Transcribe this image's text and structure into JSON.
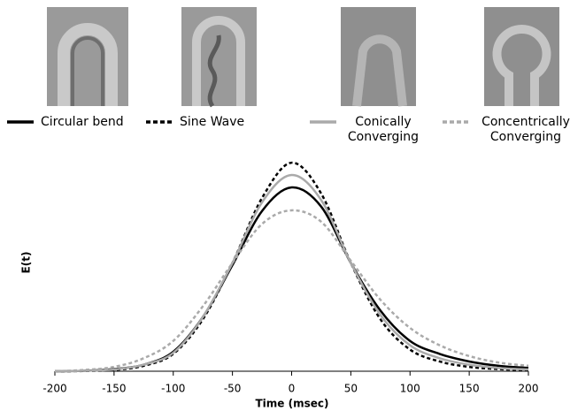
{
  "chart_data": {
    "type": "line",
    "x_label": "Time (msec)",
    "y_label": "E(t)",
    "x": [
      -200,
      -175,
      -150,
      -125,
      -100,
      -75,
      -50,
      -25,
      0,
      25,
      50,
      75,
      100,
      125,
      150,
      175,
      200
    ],
    "series": [
      {
        "name": "Circular bend",
        "color": "#000000",
        "dash": false,
        "values": [
          0,
          0.002,
          0.01,
          0.03,
          0.09,
          0.25,
          0.49,
          0.74,
          0.849,
          0.76,
          0.5,
          0.28,
          0.14,
          0.08,
          0.045,
          0.025,
          0.015
        ]
      },
      {
        "name": "Sine Wave",
        "color": "#000000",
        "dash": true,
        "values": [
          0,
          0.001,
          0.006,
          0.025,
          0.08,
          0.24,
          0.5,
          0.8,
          0.963,
          0.82,
          0.5,
          0.24,
          0.1,
          0.045,
          0.02,
          0.01,
          0.005
        ]
      },
      {
        "name": "Conically Converging",
        "color": "#aaaaaa",
        "dash": false,
        "values": [
          0,
          0.002,
          0.008,
          0.03,
          0.085,
          0.25,
          0.5,
          0.78,
          0.906,
          0.79,
          0.5,
          0.26,
          0.12,
          0.06,
          0.03,
          0.015,
          0.008
        ]
      },
      {
        "name": "Concentrically Converging",
        "color": "#aaaaaa",
        "dash": true,
        "values": [
          0,
          0.006,
          0.02,
          0.06,
          0.14,
          0.3,
          0.5,
          0.68,
          0.743,
          0.69,
          0.51,
          0.33,
          0.2,
          0.12,
          0.07,
          0.04,
          0.025
        ]
      }
    ],
    "xlim": [
      -200,
      200
    ],
    "ylim": [
      0,
      1
    ],
    "xticks": [
      -200,
      -150,
      -100,
      -50,
      0,
      50,
      100,
      150,
      200
    ]
  }
}
